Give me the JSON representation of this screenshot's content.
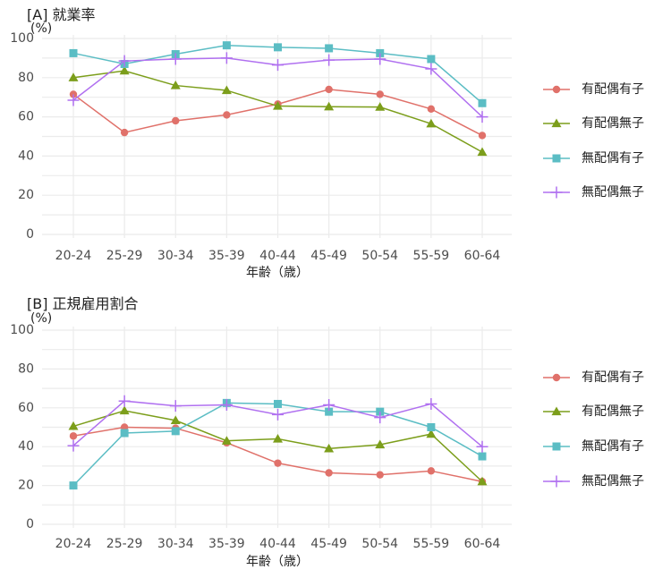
{
  "chart_data": [
    {
      "type": "line",
      "title": "[A] 就業率",
      "unit_label": "(%)",
      "xlabel": "年齢（歳）",
      "ylabel": "",
      "ylim": [
        0,
        100
      ],
      "yticks": [
        0,
        20,
        40,
        60,
        80,
        100
      ],
      "categories": [
        "20-24",
        "25-29",
        "30-34",
        "35-39",
        "40-44",
        "45-49",
        "50-54",
        "55-59",
        "60-64"
      ],
      "series": [
        {
          "name": "有配偶有子",
          "color": "#e0716a",
          "marker": "circle",
          "values": [
            71.5,
            52,
            58,
            61,
            66.5,
            74,
            71.5,
            64,
            50.5
          ]
        },
        {
          "name": "有配偶無子",
          "color": "#7c9e1b",
          "marker": "triangle",
          "values": [
            80,
            83.5,
            76,
            73.5,
            65.5,
            65.2,
            65,
            56.5,
            42
          ]
        },
        {
          "name": "無配偶有子",
          "color": "#5bbdc4",
          "marker": "square",
          "values": [
            92.5,
            87,
            92,
            96.5,
            95.5,
            95,
            92.5,
            89.5,
            67
          ]
        },
        {
          "name": "無配偶無子",
          "color": "#b070f0",
          "marker": "plus",
          "values": [
            68.5,
            88.5,
            89.5,
            90,
            86.5,
            89,
            89.5,
            84.5,
            60
          ]
        }
      ],
      "legend_position": "right"
    },
    {
      "type": "line",
      "title": "[B] 正規雇用割合",
      "unit_label": "(%)",
      "xlabel": "年齢（歳）",
      "ylabel": "",
      "ylim": [
        0,
        100
      ],
      "yticks": [
        0,
        20,
        40,
        60,
        80,
        100
      ],
      "categories": [
        "20-24",
        "25-29",
        "30-34",
        "35-39",
        "40-44",
        "45-49",
        "50-54",
        "55-59",
        "60-64"
      ],
      "series": [
        {
          "name": "有配偶有子",
          "color": "#e0716a",
          "marker": "circle",
          "values": [
            45.5,
            50,
            49.5,
            42,
            31.5,
            26.5,
            25.5,
            27.5,
            22
          ]
        },
        {
          "name": "有配偶無子",
          "color": "#7c9e1b",
          "marker": "triangle",
          "values": [
            50.5,
            58.5,
            53.5,
            43,
            44,
            39,
            41,
            46.5,
            22
          ]
        },
        {
          "name": "無配偶有子",
          "color": "#5bbdc4",
          "marker": "square",
          "values": [
            20,
            47,
            48,
            62.5,
            62,
            58,
            58,
            50,
            35
          ]
        },
        {
          "name": "無配偶無子",
          "color": "#b070f0",
          "marker": "plus",
          "values": [
            40.5,
            63.5,
            61,
            61.5,
            56.5,
            61.5,
            55,
            62,
            40
          ]
        }
      ],
      "legend_position": "right"
    }
  ]
}
